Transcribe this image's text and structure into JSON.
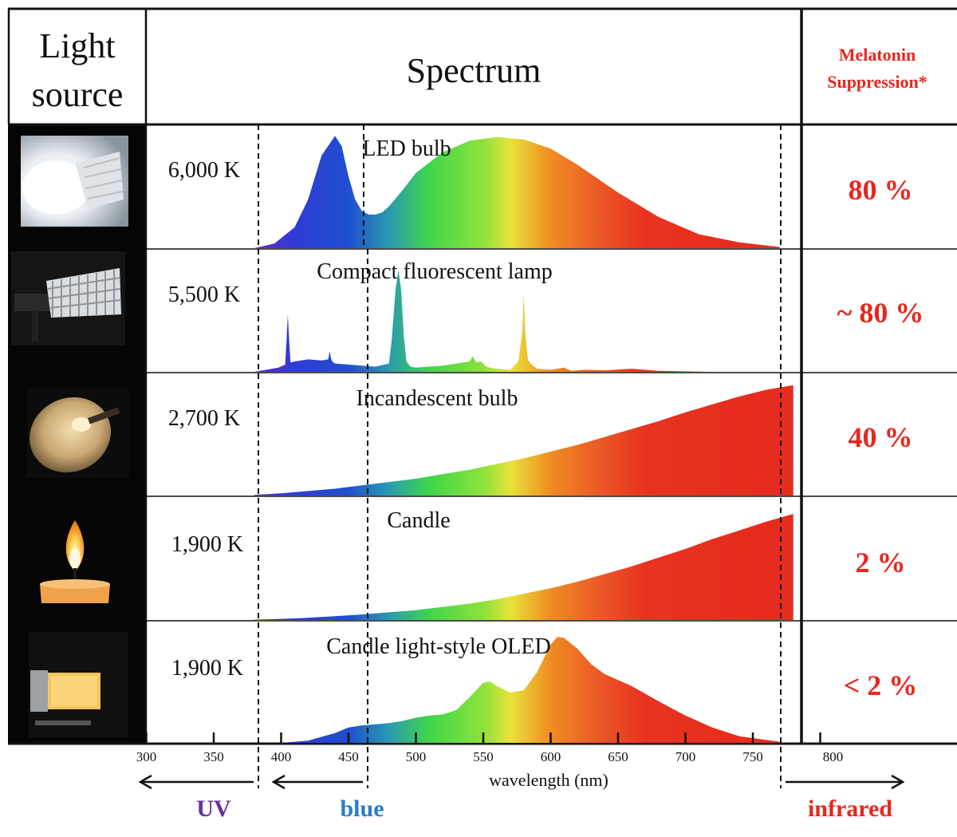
{
  "header": {
    "light_source": [
      "Light",
      "source"
    ],
    "spectrum": "Spectrum",
    "melatonin": [
      "Melatonin",
      "Suppression*"
    ]
  },
  "colors": {
    "grid": "#111111",
    "red_text": "#e8271e",
    "uv": "#6a2fa0",
    "blue": "#2a7cc9",
    "infrared": "#e8271e"
  },
  "chart_data": {
    "type": "area",
    "title": "Spectrum",
    "xlabel": "wavelength  (nm)",
    "ylabel": "",
    "xlim": [
      300,
      800
    ],
    "xticks": [
      300,
      350,
      400,
      450,
      500,
      550,
      600,
      650,
      700,
      750,
      800
    ],
    "grid": false,
    "region_markers": [
      {
        "name": "UV",
        "boundary_nm": 387,
        "direction": "left"
      },
      {
        "name": "blue",
        "boundary_nm": 468,
        "direction": "left"
      },
      {
        "name": "infrared",
        "boundary_nm": 770,
        "direction": "right"
      }
    ],
    "series": [
      {
        "name": "LED bulb",
        "icon": "led-bulb-photo",
        "color_temperature": "6,000 K",
        "melatonin_suppression": "80 %",
        "x": [
          380,
          395,
          410,
          420,
          430,
          440,
          445,
          450,
          455,
          460,
          465,
          470,
          475,
          480,
          490,
          500,
          520,
          540,
          560,
          580,
          600,
          620,
          650,
          680,
          710,
          740,
          770
        ],
        "y": [
          0,
          0.04,
          0.18,
          0.42,
          0.8,
          0.97,
          0.88,
          0.62,
          0.42,
          0.32,
          0.29,
          0.29,
          0.31,
          0.36,
          0.5,
          0.65,
          0.83,
          0.93,
          0.96,
          0.94,
          0.86,
          0.72,
          0.48,
          0.27,
          0.12,
          0.05,
          0.01
        ]
      },
      {
        "name": "Compact fluorescent lamp",
        "icon": "fluorescent-lamp-photo",
        "color_temperature": "5,500 K",
        "melatonin_suppression": "~ 80 %",
        "x": [
          380,
          398,
          403,
          404,
          405,
          406,
          407,
          410,
          420,
          430,
          435,
          436,
          437,
          438,
          440,
          450,
          460,
          470,
          480,
          482,
          485,
          487,
          489,
          491,
          493,
          496,
          500,
          520,
          540,
          542,
          545,
          548,
          550,
          552,
          555,
          560,
          570,
          576,
          579,
          580,
          581,
          583,
          585,
          590,
          600,
          610,
          615,
          625,
          640,
          660,
          680,
          700,
          720
        ],
        "y": [
          0,
          0.04,
          0.07,
          0.3,
          0.55,
          0.3,
          0.09,
          0.1,
          0.12,
          0.11,
          0.12,
          0.2,
          0.13,
          0.1,
          0.08,
          0.07,
          0.06,
          0.05,
          0.08,
          0.3,
          0.8,
          0.98,
          0.8,
          0.35,
          0.1,
          0.05,
          0.04,
          0.06,
          0.1,
          0.15,
          0.09,
          0.1,
          0.08,
          0.05,
          0.04,
          0.03,
          0.02,
          0.1,
          0.38,
          0.75,
          0.4,
          0.12,
          0.08,
          0.03,
          0.02,
          0.04,
          0.01,
          0.02,
          0.015,
          0.03,
          0.01,
          0.005,
          0
        ]
      },
      {
        "name": "Incandescent bulb",
        "icon": "incandescent-bulb-photo",
        "color_temperature": "2,700 K",
        "melatonin_suppression": "40 %",
        "x": [
          380,
          400,
          420,
          440,
          460,
          480,
          500,
          520,
          540,
          560,
          580,
          600,
          620,
          640,
          660,
          680,
          700,
          720,
          740,
          760,
          780
        ],
        "y": [
          0.005,
          0.02,
          0.04,
          0.06,
          0.09,
          0.12,
          0.15,
          0.19,
          0.23,
          0.28,
          0.33,
          0.39,
          0.45,
          0.52,
          0.59,
          0.66,
          0.74,
          0.81,
          0.88,
          0.94,
          0.98
        ]
      },
      {
        "name": "Candle",
        "icon": "candle-photo",
        "color_temperature": "1,900 K",
        "melatonin_suppression": "2 %",
        "x": [
          380,
          400,
          420,
          440,
          460,
          480,
          500,
          520,
          540,
          560,
          580,
          600,
          620,
          640,
          660,
          680,
          700,
          720,
          740,
          760,
          780
        ],
        "y": [
          0.003,
          0.01,
          0.02,
          0.035,
          0.05,
          0.07,
          0.09,
          0.12,
          0.15,
          0.19,
          0.24,
          0.29,
          0.35,
          0.42,
          0.49,
          0.57,
          0.65,
          0.74,
          0.82,
          0.9,
          0.97
        ]
      },
      {
        "name": "Candle light-style OLED",
        "icon": "oled-panel-photo",
        "color_temperature": "1,900 K",
        "melatonin_suppression": "< 2 %",
        "x": [
          400,
          420,
          440,
          450,
          460,
          470,
          480,
          490,
          500,
          510,
          520,
          530,
          540,
          550,
          555,
          560,
          570,
          580,
          590,
          600,
          605,
          610,
          620,
          630,
          640,
          660,
          680,
          700,
          720,
          740,
          770
        ],
        "y": [
          0,
          0.02,
          0.09,
          0.14,
          0.16,
          0.17,
          0.18,
          0.2,
          0.23,
          0.25,
          0.26,
          0.3,
          0.42,
          0.55,
          0.56,
          0.52,
          0.46,
          0.48,
          0.65,
          0.9,
          0.97,
          0.96,
          0.86,
          0.72,
          0.63,
          0.52,
          0.38,
          0.25,
          0.14,
          0.06,
          0.01
        ]
      }
    ]
  },
  "axis_labels": {
    "wavelength": "wavelength  (nm)",
    "uv": "UV",
    "blue": "blue",
    "infrared": "infrared"
  }
}
